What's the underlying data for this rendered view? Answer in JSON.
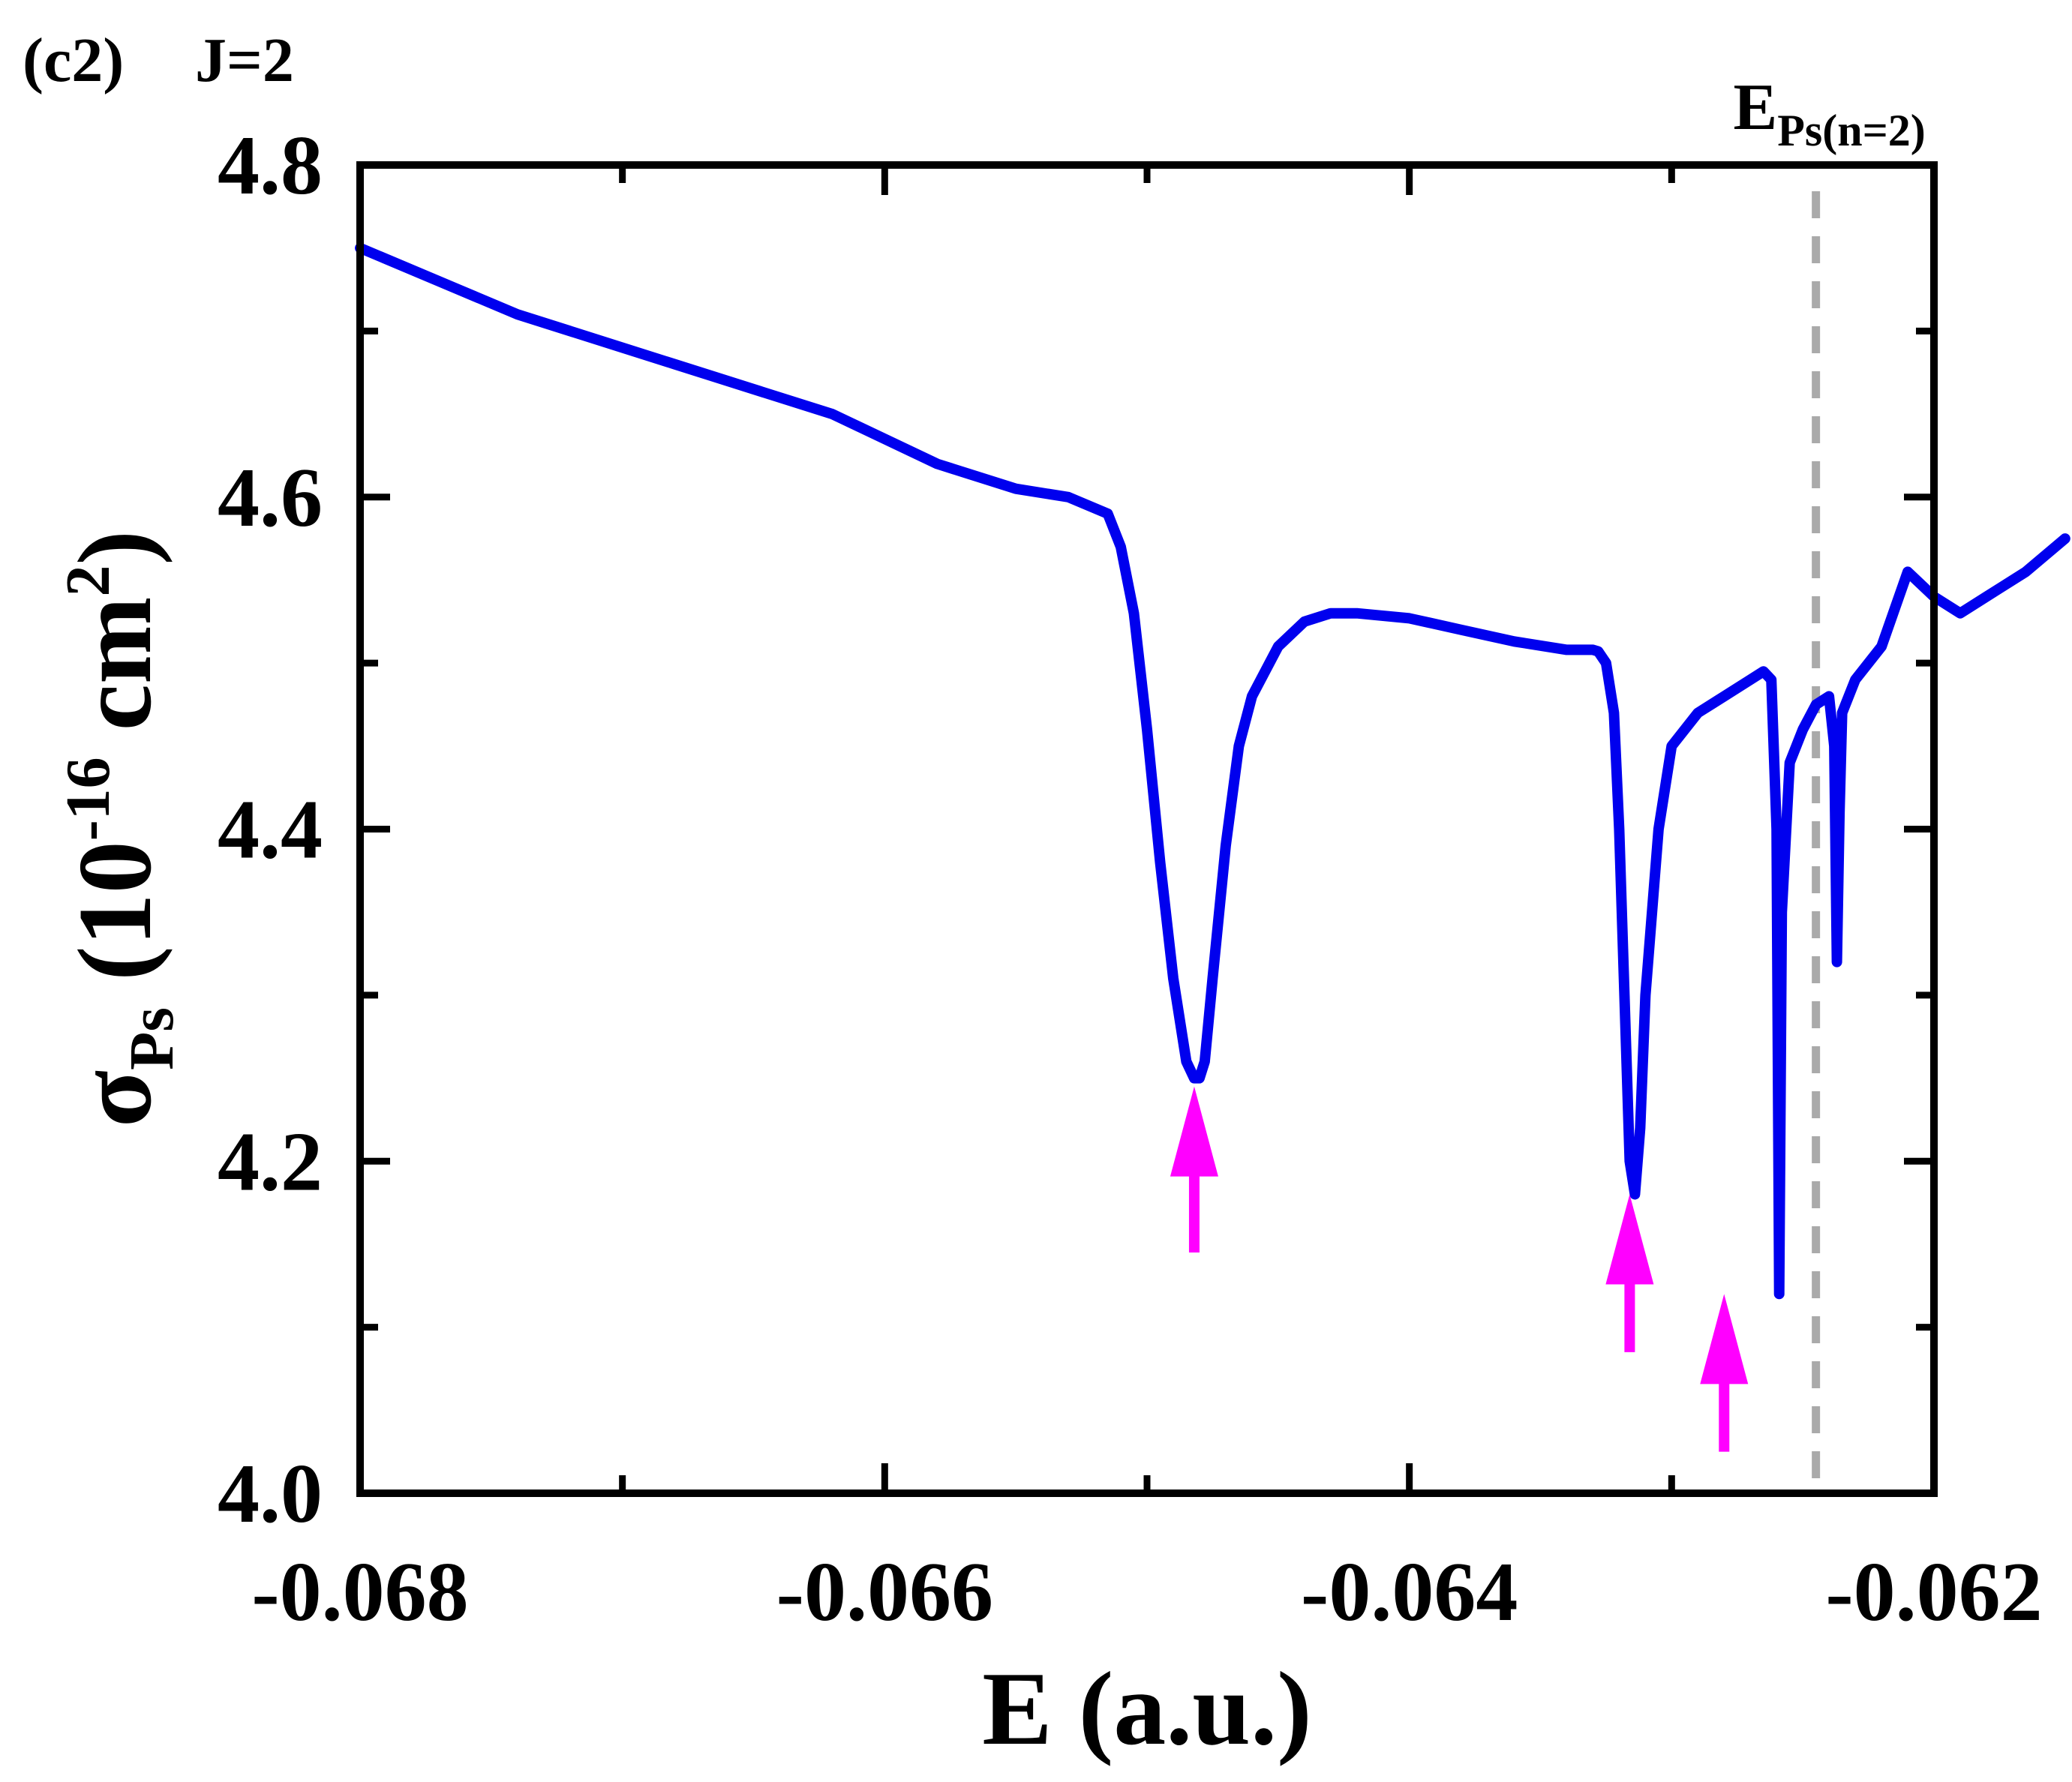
{
  "chart_data": {
    "type": "line",
    "panel_label": "(c2)",
    "panel_subtitle": "J=2",
    "xlabel": "E (a.u.)",
    "ylabel": {
      "symbol": "σ",
      "subscript": "Ps",
      "unit_open": " (10",
      "unit_exponent": "-16",
      "unit_mid": " cm",
      "unit_power": "2",
      "unit_close": ")"
    },
    "xlim": [
      -0.068,
      -0.062
    ],
    "ylim": [
      4.0,
      4.8
    ],
    "xticks": [
      -0.068,
      -0.066,
      -0.064,
      -0.062
    ],
    "xtick_labels": [
      "-0.068",
      "-0.066",
      "-0.064",
      "-0.062"
    ],
    "xminor": [
      -0.067,
      -0.065,
      -0.063
    ],
    "yticks": [
      4.0,
      4.2,
      4.4,
      4.6,
      4.8
    ],
    "ytick_labels": [
      "4.0",
      "4.2",
      "4.4",
      "4.6",
      "4.8"
    ],
    "yminor": [
      4.1,
      4.3,
      4.5,
      4.7
    ],
    "grid": false,
    "colors": {
      "series": "#0000ee",
      "arrows": "#ff00ff",
      "threshold": "#aaaaaa",
      "axes": "#000000"
    },
    "series": [
      {
        "name": "sigma_Ps",
        "x": [
          -0.068,
          -0.0674,
          -0.0668,
          -0.0662,
          -0.0658,
          -0.0655,
          -0.0653,
          -0.06515,
          -0.0651,
          -0.06505,
          -0.065,
          -0.06495,
          -0.0649,
          -0.06485,
          -0.06482,
          -0.0648,
          -0.06478,
          -0.06475,
          -0.0647,
          -0.06465,
          -0.0646,
          -0.0645,
          -0.0644,
          -0.0643,
          -0.0642,
          -0.064,
          -0.0638,
          -0.0636,
          -0.0634,
          -0.0633,
          -0.06328,
          -0.06325,
          -0.06322,
          -0.0632,
          -0.06318,
          -0.06316,
          -0.06314,
          -0.06312,
          -0.0631,
          -0.06305,
          -0.063,
          -0.0629,
          -0.0628,
          -0.0627,
          -0.06265,
          -0.06262,
          -0.0626,
          -0.06259,
          -0.06258,
          -0.06255,
          -0.0625,
          -0.06245,
          -0.0624,
          -0.06238,
          -0.06237,
          -0.06236,
          -0.06235,
          -0.0623,
          -0.0622,
          -0.0621,
          -0.062,
          -0.0619,
          -0.0618,
          -0.06165,
          -0.0615
        ],
        "y": [
          4.75,
          4.71,
          4.68,
          4.65,
          4.62,
          4.605,
          4.6,
          4.59,
          4.57,
          4.53,
          4.46,
          4.38,
          4.31,
          4.26,
          4.25,
          4.25,
          4.26,
          4.31,
          4.39,
          4.45,
          4.48,
          4.51,
          4.525,
          4.53,
          4.53,
          4.527,
          4.52,
          4.513,
          4.508,
          4.508,
          4.507,
          4.5,
          4.47,
          4.4,
          4.3,
          4.2,
          4.18,
          4.22,
          4.3,
          4.4,
          4.45,
          4.47,
          4.48,
          4.49,
          4.495,
          4.49,
          4.4,
          4.12,
          4.35,
          4.44,
          4.46,
          4.475,
          4.48,
          4.45,
          4.32,
          4.41,
          4.47,
          4.49,
          4.51,
          4.555,
          4.54,
          4.53,
          4.54,
          4.555,
          4.575
        ]
      }
    ],
    "arrows": [
      {
        "x": -0.06482,
        "tip_y": 4.245,
        "tail_y": 4.145
      },
      {
        "x": -0.06316,
        "tip_y": 4.18,
        "tail_y": 4.085
      },
      {
        "x": -0.0628,
        "tip_y": 4.12,
        "tail_y": 4.025
      }
    ],
    "threshold": {
      "x": -0.06245,
      "label_main": "E",
      "label_sub": "Ps(n=2)"
    }
  }
}
